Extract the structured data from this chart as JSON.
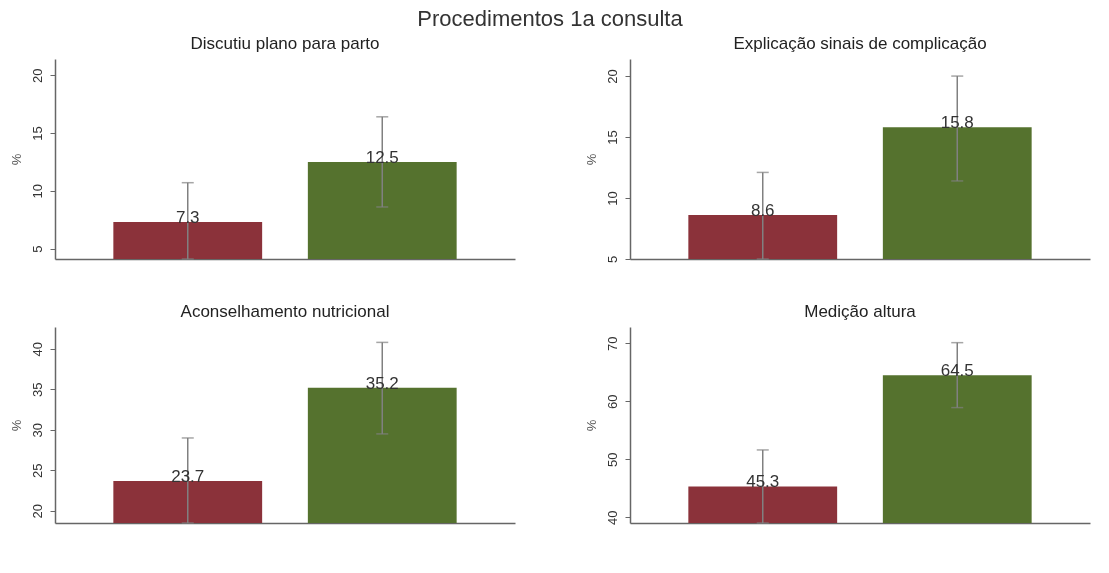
{
  "chart_data": [
    {
      "type": "bar",
      "title": "Procedimentos 1a consulta",
      "subtitle": "Discutiu plano para parto",
      "ylabel": "%",
      "categories": [
        null,
        null
      ],
      "values": [
        7.3,
        12.5
      ],
      "colors": [
        "#8b323a",
        "#55722e"
      ],
      "errors": [
        [
          4.1,
          10.7
        ],
        [
          8.6,
          16.4
        ]
      ],
      "ylim": [
        4.1,
        21.4
      ],
      "yticks": [
        5,
        10,
        15,
        20
      ],
      "data_labels": true,
      "tick_labels": "y"
    },
    {
      "type": "bar",
      "subtitle": "Explicação sinais de complicação",
      "ylabel": "%",
      "categories": [
        null,
        null
      ],
      "values": [
        8.6,
        15.8
      ],
      "colors": [
        "#8b323a",
        "#55722e"
      ],
      "errors": [
        [
          5.0,
          12.1
        ],
        [
          11.4,
          20.0
        ]
      ],
      "ylim": [
        5,
        21.4
      ],
      "yticks": [
        5,
        10,
        15,
        20
      ],
      "data_labels": true,
      "tick_labels": "y"
    },
    {
      "type": "bar",
      "subtitle": "Aconselhamento nutricional",
      "ylabel": "%",
      "categories": [
        null,
        null
      ],
      "values": [
        23.7,
        35.2
      ],
      "colors": [
        "#8b323a",
        "#55722e"
      ],
      "errors": [
        [
          18.5,
          29.0
        ],
        [
          29.5,
          40.8
        ]
      ],
      "ylim": [
        18.5,
        42.7
      ],
      "yticks": [
        20,
        25,
        30,
        35,
        40
      ],
      "data_labels": true,
      "tick_labels": "y"
    },
    {
      "type": "bar",
      "subtitle": "Medição altura",
      "ylabel": "%",
      "categories": [
        null,
        null
      ],
      "values": [
        45.3,
        64.5
      ],
      "colors": [
        "#8b323a",
        "#55722e"
      ],
      "errors": [
        [
          39,
          51.6
        ],
        [
          58.9,
          70.1
        ]
      ],
      "ylim": [
        39,
        72.8
      ],
      "yticks": [
        40,
        50,
        60,
        70
      ],
      "data_labels": true,
      "tick_labels": "y"
    }
  ]
}
